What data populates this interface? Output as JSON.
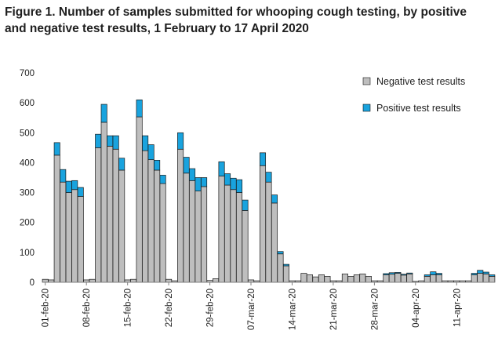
{
  "chart_data": {
    "type": "bar",
    "stacked": true,
    "title": "Figure 1. Number of samples submitted for whooping cough testing,  by positive  and negative test  results,  1 February to  17 April 2020",
    "xlabel": "",
    "ylabel": "",
    "ylim": [
      0,
      700
    ],
    "yticks": [
      0,
      100,
      200,
      300,
      400,
      500,
      600,
      700
    ],
    "grid": false,
    "legend_position": "top-right",
    "x_tick_labels": [
      "01-feb-20",
      "08-feb-20",
      "15-feb-20",
      "22-feb-20",
      "29-feb-20",
      "07-mar-20",
      "14-mar-20",
      "21-mar-20",
      "28-mar-20",
      "04-apr-20",
      "11-apr-20"
    ],
    "x_tick_every": 7,
    "n_days": 77,
    "series": [
      {
        "name": "Negative test results",
        "color": "#bebebe",
        "values": [
          10,
          8,
          425,
          335,
          300,
          310,
          287,
          8,
          10,
          450,
          535,
          455,
          445,
          375,
          8,
          10,
          553,
          440,
          410,
          375,
          330,
          10,
          5,
          445,
          365,
          340,
          305,
          320,
          6,
          12,
          355,
          325,
          310,
          300,
          240,
          8,
          5,
          390,
          335,
          265,
          95,
          55,
          5,
          5,
          30,
          25,
          18,
          25,
          20,
          5,
          5,
          28,
          20,
          25,
          28,
          20,
          5,
          5,
          25,
          27,
          30,
          24,
          28,
          3,
          5,
          20,
          25,
          25,
          5,
          5,
          5,
          5,
          5,
          25,
          30,
          28,
          20
        ]
      },
      {
        "name": "Positive test results",
        "color": "#19a3de",
        "values": [
          0,
          0,
          42,
          42,
          38,
          30,
          30,
          0,
          0,
          45,
          60,
          35,
          45,
          40,
          0,
          0,
          57,
          50,
          50,
          33,
          28,
          0,
          0,
          55,
          53,
          40,
          45,
          30,
          0,
          0,
          48,
          38,
          38,
          43,
          35,
          0,
          0,
          43,
          33,
          27,
          8,
          5,
          0,
          0,
          0,
          0,
          0,
          0,
          0,
          0,
          0,
          0,
          0,
          0,
          0,
          0,
          0,
          0,
          4,
          5,
          3,
          3,
          3,
          0,
          0,
          5,
          10,
          5,
          0,
          0,
          0,
          0,
          0,
          5,
          10,
          6,
          5
        ]
      }
    ]
  }
}
